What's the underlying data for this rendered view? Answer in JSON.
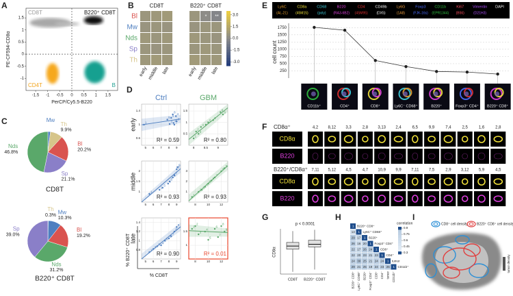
{
  "panels": {
    "A": {
      "letter": "A",
      "quadrants": [
        "CD8T",
        "B220⁺ CD8T",
        "CD4T",
        "B"
      ],
      "quadrant_colors": [
        "#9a9a9a",
        "#111111",
        "#f2a31b",
        "#1a9e8f"
      ],
      "x_label": "PerCP/Cy5.5-B220",
      "y_label": "PE-CF594-CD8α",
      "xlim": [
        -1.9,
        1.9
      ],
      "ylim": [
        -1.5,
        1.9
      ],
      "xticks": [
        -1.5,
        -1,
        -0.5,
        0,
        0.5,
        1,
        1.5
      ],
      "yticks": [
        -1,
        -0.5,
        0,
        0.5,
        1,
        1.5
      ]
    },
    "B": {
      "letter": "B",
      "groups": [
        "CD8T",
        "B220⁺ CD8T"
      ],
      "rows": [
        "Bl",
        "Mw",
        "Nds",
        "Sp",
        "Th"
      ],
      "row_colors": [
        "#d9534f",
        "#4f7fc0",
        "#5aa86a",
        "#8a7fc8",
        "#d6c58a"
      ],
      "cols": [
        "early",
        "middle",
        "late"
      ],
      "values": [
        [
          [
            0.6,
            0.7,
            0.8
          ],
          [
            0.5,
            0.6,
            0.5
          ],
          [
            0.7,
            0.6,
            0.7
          ],
          [
            0.6,
            0.5,
            0.6
          ],
          [
            0.7,
            0.8,
            0.7
          ]
        ],
        [
          [
            0.6,
            0.1,
            -0.2
          ],
          [
            0.5,
            0.6,
            0.6
          ],
          [
            0.7,
            0.6,
            0.5
          ],
          [
            0.6,
            0.7,
            0.6
          ],
          [
            0.8,
            0.7,
            0.7
          ]
        ]
      ],
      "stars": [
        [
          [
            null,
            null,
            null
          ],
          [
            null,
            null,
            null
          ],
          [
            null,
            null,
            null
          ],
          [
            null,
            null,
            null
          ],
          [
            null,
            null,
            null
          ]
        ],
        [
          [
            null,
            "*",
            "**"
          ],
          [
            null,
            null,
            null
          ],
          [
            null,
            null,
            null
          ],
          [
            null,
            null,
            null
          ],
          [
            null,
            null,
            null
          ]
        ]
      ],
      "clim": [
        -3.5,
        3.5
      ],
      "colorbar_ticks": [
        {
          "value": 3,
          "label": "3.0"
        },
        1.5,
        {
          "value": 0,
          "label": "0.0"
        },
        -1.5,
        {
          "value": -3,
          "label": "-3.0"
        }
      ]
    },
    "C": {
      "letter": "C",
      "pies": [
        {
          "title": "CD8T",
          "categories": [
            "Mw",
            "Th",
            "Bl",
            "Sp",
            "Nds"
          ],
          "values": [
            2.0,
            9.9,
            20.2,
            21.1,
            46.8
          ],
          "value_labels": [
            null,
            "9.9%",
            "20.2%",
            "21.1%",
            "46.8%"
          ],
          "colors": [
            "#4f7fc0",
            "#d6c58a",
            "#d9534f",
            "#8a7fc8",
            "#5aa86a"
          ]
        },
        {
          "title": "B220⁺ CD8T",
          "categories": [
            "Th",
            "Mw",
            "Bl",
            "Nds",
            "Sp"
          ],
          "values": [
            0.3,
            10.3,
            19.2,
            31.2,
            39.0
          ],
          "value_labels": [
            "0.3%",
            "10.3%",
            "19.2%",
            "31.2%",
            "39.0%"
          ],
          "colors": [
            "#d6c58a",
            "#4f7fc0",
            "#d9534f",
            "#5aa86a",
            "#8a7fc8"
          ]
        }
      ]
    },
    "D": {
      "letter": "D",
      "columns": [
        "Ctrl",
        "GBM"
      ],
      "column_colors": [
        "#4f7fc0",
        "#5aa86a"
      ],
      "rows": [
        "early",
        "middle",
        "late"
      ],
      "y_label": "% B220⁺ CD8T",
      "x_label": "% CD8T",
      "plots": [
        [
          {
            "xlim": [
              4.5,
              9.5
            ],
            "ylim": [
              0.4,
              1.6
            ],
            "xticks": [
              5,
              6,
              7,
              8,
              9
            ],
            "yticks": [
              0.6,
              1,
              1.4
            ],
            "x": [
              4.8,
              8.6,
              8.1,
              8.9,
              7.8,
              8.3,
              8.7,
              8.5,
              9.0
            ],
            "y": [
              1.0,
              1.05,
              1.02,
              1.25,
              1.15,
              1.2,
              1.0,
              1.3,
              1.1
            ],
            "labels": [
              "1",
              "2",
              "3",
              "4",
              "5",
              "6",
              "7",
              "8",
              "9"
            ],
            "r2": "R² = 0.59"
          },
          {
            "xlim": [
              7.8,
              9.4
            ],
            "ylim": [
              0,
              1.8
            ],
            "xticks": [
              8,
              8.5,
              9
            ],
            "yticks": [
              0.5,
              1,
              1.5
            ],
            "x": [
              8.0,
              8.1,
              8.2,
              8.3,
              8.6,
              8.8,
              8.5,
              9.1,
              9.2
            ],
            "y": [
              0.3,
              0.6,
              0.5,
              0.8,
              1.0,
              1.1,
              0.9,
              1.45,
              1.35
            ],
            "labels": [
              "1",
              "2",
              "3",
              "4",
              "5",
              "6",
              "7",
              "8",
              "9"
            ],
            "r2": "R² = 0.80"
          }
        ],
        [
          {
            "xlim": [
              4.5,
              9.5
            ],
            "ylim": [
              0.5,
              2.5
            ],
            "xticks": [
              5,
              6,
              7,
              8,
              9
            ],
            "yticks": [
              1,
              1.5,
              2
            ],
            "x": [
              5.5,
              6.8,
              7.2,
              7.9,
              8.1,
              8.5,
              8.7,
              9.0,
              9.1
            ],
            "y": [
              0.9,
              1.1,
              1.2,
              1.4,
              1.5,
              1.7,
              1.8,
              2.1,
              2.2
            ],
            "labels": [
              "1",
              "2",
              "3",
              "4",
              "5",
              "6",
              "7",
              "8",
              "9"
            ],
            "r2": "R² = 0.93"
          },
          {
            "xlim": [
              7,
              13
            ],
            "ylim": [
              0,
              4
            ],
            "xticks": [
              8,
              10,
              12
            ],
            "yticks": [
              1,
              2,
              3
            ],
            "x": [
              7.5,
              8.5,
              9,
              9.5,
              10,
              10.5,
              11,
              12,
              12.5
            ],
            "y": [
              0.5,
              1,
              1.2,
              1.5,
              1.8,
              2.1,
              2.4,
              3,
              3.3
            ],
            "labels": [
              "1",
              "2",
              "3",
              "4",
              "5",
              "6",
              "7",
              "8",
              "9"
            ],
            "r2": "R² = 0.93"
          }
        ],
        [
          {
            "xlim": [
              4.5,
              9.5
            ],
            "ylim": [
              0.6,
              1.5
            ],
            "xticks": [
              5,
              6,
              7,
              8,
              9
            ],
            "yticks": [
              0.8,
              1,
              1.2,
              1.4
            ],
            "x": [
              5.5,
              6,
              6.5,
              7,
              7.5,
              8,
              8.3,
              8.7,
              9
            ],
            "y": [
              0.75,
              0.82,
              0.88,
              0.9,
              1.0,
              1.05,
              1.1,
              1.2,
              1.3
            ],
            "labels": [
              "1",
              "2",
              "3",
              "4",
              "5",
              "6",
              "7",
              "8",
              "9"
            ],
            "r2": "R² = 0.90"
          },
          {
            "xlim": [
              7,
              13
            ],
            "ylim": [
              0.5,
              2
            ],
            "xticks": [
              8,
              10,
              12
            ],
            "yticks": [
              1,
              1.5
            ],
            "x": [
              7.5,
              8,
              8.5,
              9.5,
              10,
              11,
              11.5,
              12,
              12.5
            ],
            "y": [
              1.6,
              1.7,
              1.4,
              1.5,
              1.2,
              1.6,
              1.3,
              1.7,
              1.5
            ],
            "labels": [
              "1",
              "2",
              "3",
              "4",
              "5",
              "6",
              "7",
              "8",
              "9"
            ],
            "r2": "R² = 0.01",
            "frame_color": "#e8452c"
          }
        ]
      ]
    },
    "E": {
      "letter": "E",
      "markers": [
        {
          "name": "Ly6C",
          "clone": "(AL-21)",
          "color": "#e8a030"
        },
        {
          "name": "CD8a",
          "clone": "(45M15)",
          "color": "#f2e23a"
        },
        {
          "name": "CD68",
          "clone": "(poly)",
          "color": "#3fd0e0"
        },
        {
          "name": "B220",
          "clone": "(RA3-6B2)",
          "color": "#e040e0"
        },
        {
          "name": "CD4",
          "clone": "(4SM95)",
          "color": "#e03030"
        },
        {
          "name": "CD49b",
          "clone": "(DX5)",
          "color": "#ffffff"
        },
        {
          "name": "Ly6G",
          "clone": "(1A8)",
          "color": "#f0a040"
        },
        {
          "name": "Foxp3",
          "clone": "(FJK-16s)",
          "color": "#4a6cff"
        },
        {
          "name": "CD11b",
          "clone": "(EPR1344)",
          "color": "#30c040"
        },
        {
          "name": "Ki67",
          "clone": "(B56)",
          "color": "#ff5060"
        },
        {
          "name": "Vimentin",
          "clone": "(D21H3)",
          "color": "#b050ff"
        },
        {
          "name": "DAPI",
          "color": "#ffffff"
        }
      ],
      "y_label": "cell count",
      "ylim": [
        0,
        1900
      ],
      "yticks": [
        250,
        500,
        750,
        1000,
        1250,
        1500,
        1750
      ],
      "categories": [
        "CD11b⁺",
        "CD4⁺",
        "CD8⁺",
        "Ly6C⁻ CD68⁺",
        "B220⁺",
        "Foxp3⁺ CD4⁺",
        "B220⁺ CD8⁺"
      ],
      "values": [
        1760,
        1660,
        610,
        400,
        230,
        210,
        140
      ]
    },
    "F": {
      "letter": "F",
      "sections": [
        {
          "title": "CD8α⁺",
          "channels": [
            "CD8α",
            "B220"
          ],
          "channel_colors": [
            "#f2e23a",
            "#e040e0"
          ],
          "ids": [
            "4,2",
            "8,12",
            "3,3",
            "2,8",
            "3,13",
            "2,4",
            "6,5",
            "9,9",
            "7,4",
            "2,5",
            "1,6",
            "2,8"
          ]
        },
        {
          "title": "B220⁺/CD8α⁺",
          "channels": [
            "CD8α",
            "B220"
          ],
          "channel_colors": [
            "#f2e23a",
            "#e040e0"
          ],
          "ids": [
            "7,11",
            "5,12",
            "4,5",
            "4,7",
            "10,9",
            "9,9",
            "7,11",
            "7,5",
            "2,9",
            "3,12",
            "5,9",
            "4,5"
          ]
        }
      ]
    },
    "G": {
      "letter": "G",
      "p_label": "p < 0.0001",
      "y_label": "CD8α",
      "categories": [
        "CD8T",
        "B220⁺ CD8T"
      ],
      "ylim": [
        0,
        1
      ],
      "boxes": [
        [
          0.05,
          0.55,
          0.62,
          0.7,
          0.95
        ],
        [
          0.1,
          0.6,
          0.66,
          0.75,
          0.98
        ]
      ]
    },
    "H": {
      "letter": "H",
      "labels": [
        "B220⁺ CD8⁺",
        "Ly6C⁺ CD68⁺",
        "B220⁺",
        "Foxp3⁺ CD4⁺",
        "CD8⁺",
        "CD4⁺",
        "tumor",
        "CD11b⁺"
      ],
      "matrix": [
        [
          1
        ],
        [
          13,
          1
        ],
        [
          29,
          17,
          1
        ],
        [
          26,
          16,
          20,
          1
        ],
        [
          22,
          17,
          26,
          24,
          1
        ],
        [
          22,
          20,
          23,
          21,
          23,
          1
        ],
        [
          24,
          30,
          25,
          21,
          24,
          24,
          1
        ],
        [
          29,
          21,
          25,
          19,
          24,
          23,
          26,
          1
        ]
      ],
      "colorbar_title": "correlation",
      "colorbar_ticks": [
        0.9,
        0.75,
        0.6,
        0.45,
        0.3
      ]
    },
    "I": {
      "letter": "I",
      "legend": [
        "CD8⁺ cell density",
        "B220⁺ CD8⁺ cell density"
      ],
      "legend_colors": [
        "#2b8fd6",
        "#e04040"
      ],
      "scale_label": "tumor density"
    }
  }
}
